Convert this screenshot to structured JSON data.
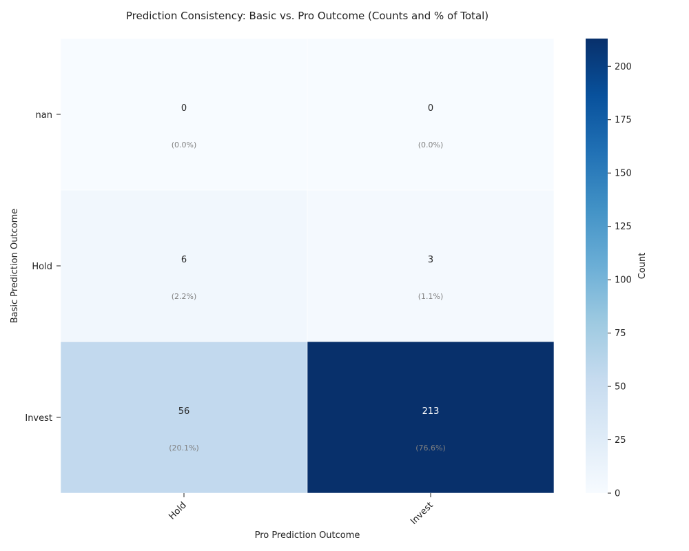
{
  "chart_data": {
    "type": "heatmap",
    "title": "Prediction Consistency: Basic vs. Pro Outcome (Counts and % of Total)",
    "xlabel": "Pro Prediction Outcome",
    "ylabel": "Basic Prediction Outcome",
    "x_categories": [
      "Hold",
      "Invest"
    ],
    "y_categories": [
      "nan",
      "Hold",
      "Invest"
    ],
    "values": [
      [
        0,
        0
      ],
      [
        6,
        3
      ],
      [
        56,
        213
      ]
    ],
    "percent_labels": [
      [
        "(0.0%)",
        "(0.0%)"
      ],
      [
        "(2.2%)",
        "(1.1%)"
      ],
      [
        "(20.1%)",
        "(76.6%)"
      ]
    ],
    "colorbar": {
      "label": "Count",
      "range": [
        0,
        213
      ],
      "ticks": [
        0,
        25,
        50,
        75,
        100,
        125,
        150,
        175,
        200
      ],
      "colormap": "Blues",
      "low_color": "#f7fbff",
      "high_color": "#08306b"
    },
    "grid": false,
    "legend": "colorbar-right"
  }
}
